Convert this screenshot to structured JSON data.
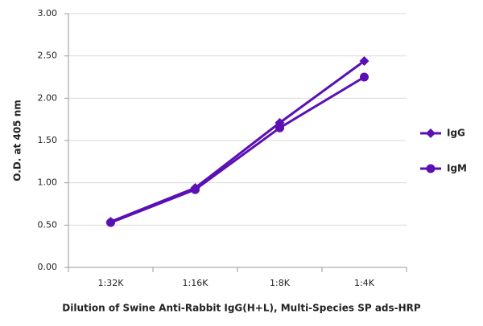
{
  "chart_data": {
    "type": "line",
    "ylabel": "O.D. at 405 nm",
    "xlabel": "Dilution of Swine Anti-Rabbit IgG(H+L), Multi-Species SP ads-HRP",
    "categories": [
      "1:32K",
      "1:16K",
      "1:8K",
      "1:4K"
    ],
    "series": [
      {
        "name": "IgG",
        "color": "#5a10b4",
        "marker": "diamond",
        "values": [
          0.54,
          0.94,
          1.71,
          2.44
        ]
      },
      {
        "name": "IgM",
        "color": "#5a10b4",
        "marker": "circle",
        "values": [
          0.53,
          0.92,
          1.65,
          2.25
        ]
      }
    ],
    "ylim": [
      0,
      3
    ],
    "yticks": [
      {
        "value": 0,
        "label": "0.00"
      },
      {
        "value": 0.5,
        "label": "0.50"
      },
      {
        "value": 1,
        "label": "1.00"
      },
      {
        "value": 1.5,
        "label": "1.50"
      },
      {
        "value": 2,
        "label": "2.00"
      },
      {
        "value": 2.5,
        "label": "2.50"
      },
      {
        "value": 3,
        "label": "3.00"
      }
    ],
    "grid": true,
    "legend": "right"
  }
}
